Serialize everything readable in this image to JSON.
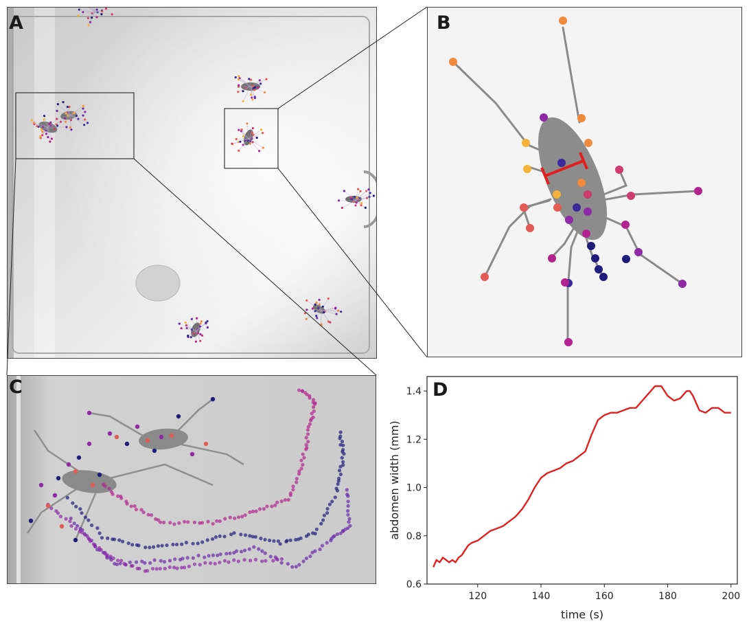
{
  "figure": {
    "panel_labels": {
      "a": "A",
      "b": "B",
      "c": "C",
      "d": "D"
    },
    "colors": {
      "keypoint_palette": [
        "#1f1b7a",
        "#3a2a9a",
        "#6a2aa8",
        "#8e2aa6",
        "#b3238f",
        "#cf3b6e",
        "#e25b57",
        "#f08a3e",
        "#f7b23a"
      ],
      "measurement_bar": "#e0201f",
      "line": "#e0201f"
    }
  },
  "chart_data": {
    "type": "line",
    "title": "",
    "xlabel": "time (s)",
    "ylabel": "abdomen width (mm)",
    "xlim": [
      104,
      202
    ],
    "ylim": [
      0.6,
      1.46
    ],
    "xticks": [
      120,
      140,
      160,
      180,
      200
    ],
    "yticks": [
      0.6,
      0.8,
      1.0,
      1.2,
      1.4
    ],
    "xtick_labels": [
      "120",
      "140",
      "160",
      "180",
      "200"
    ],
    "ytick_labels": [
      "0.6",
      "0.8",
      "1.0",
      "1.2",
      "1.4"
    ],
    "grid": false,
    "series": [
      {
        "color": "#e0201f",
        "x": [
          106,
          107,
          108,
          109,
          110,
          111,
          112,
          113,
          114,
          115,
          116,
          117,
          118,
          120,
          122,
          124,
          126,
          128,
          130,
          132,
          134,
          136,
          138,
          140,
          142,
          144,
          146,
          148,
          150,
          152,
          154,
          156,
          158,
          160,
          162,
          164,
          166,
          168,
          170,
          172,
          174,
          176,
          178,
          180,
          182,
          184,
          186,
          187,
          188,
          190,
          192,
          194,
          196,
          198,
          200
        ],
        "y": [
          0.67,
          0.7,
          0.69,
          0.71,
          0.7,
          0.69,
          0.7,
          0.69,
          0.71,
          0.72,
          0.74,
          0.76,
          0.77,
          0.78,
          0.8,
          0.82,
          0.83,
          0.84,
          0.86,
          0.88,
          0.91,
          0.95,
          1.0,
          1.04,
          1.06,
          1.07,
          1.08,
          1.1,
          1.11,
          1.13,
          1.15,
          1.22,
          1.28,
          1.3,
          1.31,
          1.31,
          1.32,
          1.33,
          1.33,
          1.36,
          1.39,
          1.42,
          1.42,
          1.38,
          1.36,
          1.37,
          1.4,
          1.4,
          1.38,
          1.32,
          1.31,
          1.33,
          1.33,
          1.31,
          1.31
        ]
      }
    ]
  }
}
